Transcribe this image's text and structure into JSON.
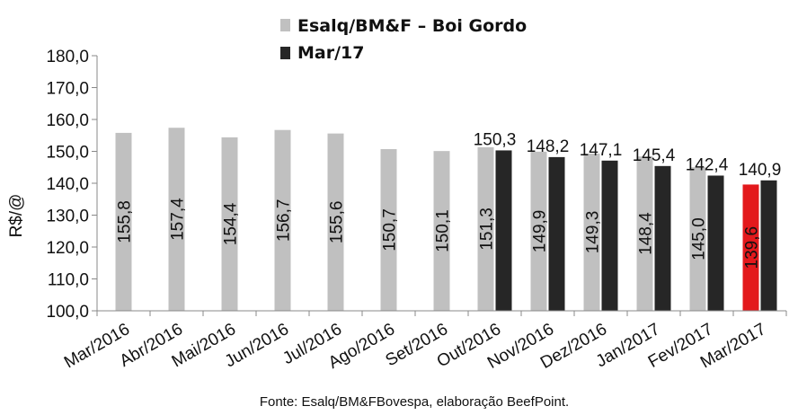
{
  "chart_data": {
    "type": "bar",
    "ylabel": "R$/@",
    "ylim": [
      100,
      180
    ],
    "yticks": [
      100,
      110,
      120,
      130,
      140,
      150,
      160,
      170,
      180
    ],
    "ytick_labels": [
      "100,0",
      "110,0",
      "120,0",
      "130,0",
      "140,0",
      "150,0",
      "160,0",
      "170,0",
      "180,0"
    ],
    "legend_position": "top-center",
    "categories": [
      "Mar/2016",
      "Abr/2016",
      "Mai/2016",
      "Jun/2016",
      "Jul/2016",
      "Ago/2016",
      "Set/2016",
      "Out/2016",
      "Nov/2016",
      "Dez/2016",
      "Jan/2017",
      "Fev/2017",
      "Mar/2017"
    ],
    "series": [
      {
        "name": "Esalq/BM&F – Boi Gordo",
        "color": "#c0c0c0",
        "values": [
          155.8,
          157.4,
          154.4,
          156.7,
          155.6,
          150.7,
          150.1,
          151.3,
          149.9,
          149.3,
          148.4,
          145.0,
          139.6
        ],
        "labels": [
          "155,8",
          "157,4",
          "154,4",
          "156,7",
          "155,6",
          "150,7",
          "150,1",
          "151,3",
          "149,9",
          "149,3",
          "148,4",
          "145,0",
          "139,6"
        ],
        "highlight_index": 12,
        "highlight_color": "#e3191c"
      },
      {
        "name": "Mar/17",
        "color": "#262626",
        "values": [
          null,
          null,
          null,
          null,
          null,
          null,
          null,
          150.3,
          148.2,
          147.1,
          145.4,
          142.4,
          140.9
        ],
        "labels": [
          null,
          null,
          null,
          null,
          null,
          null,
          null,
          "150,3",
          "148,2",
          "147,1",
          "145,4",
          "142,4",
          "140,9"
        ]
      }
    ],
    "source": "Fonte: Esalq/BM&FBovespa, elaboração BeefPoint."
  }
}
